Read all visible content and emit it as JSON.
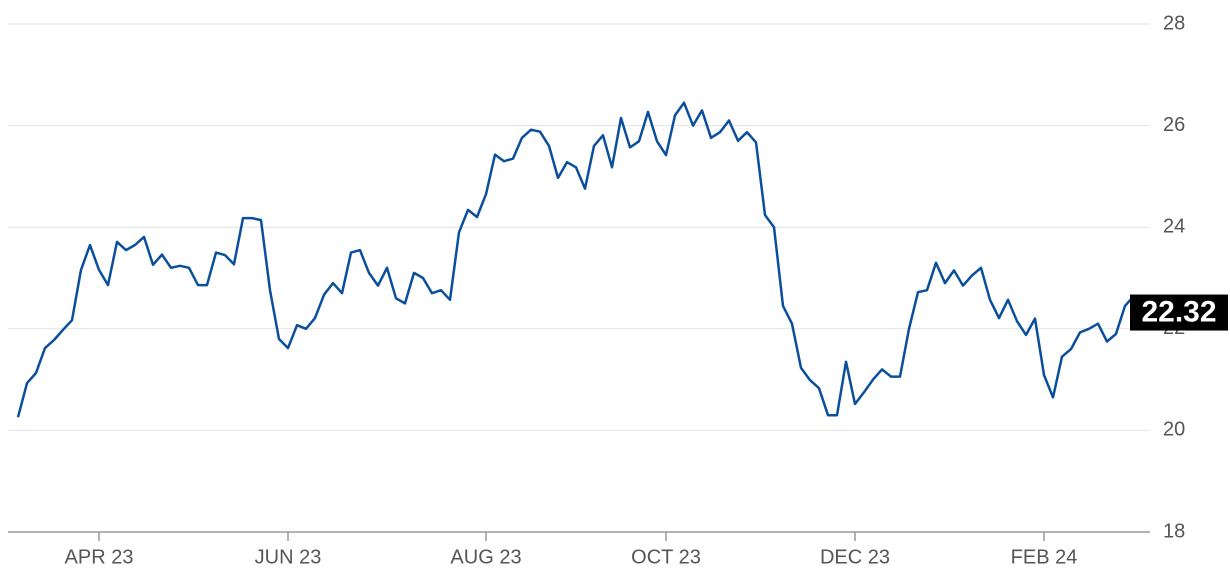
{
  "chart_data": {
    "type": "line",
    "categories": [
      null,
      null,
      null,
      null,
      null,
      null,
      null,
      null,
      null,
      "APR 23",
      null,
      null,
      null,
      null,
      null,
      null,
      null,
      null,
      null,
      null,
      null,
      null,
      null,
      null,
      null,
      null,
      null,
      null,
      null,
      null,
      "JUN 23",
      null,
      null,
      null,
      null,
      null,
      null,
      null,
      null,
      null,
      null,
      null,
      null,
      null,
      null,
      null,
      null,
      null,
      null,
      null,
      null,
      null,
      "AUG 23",
      null,
      null,
      null,
      null,
      null,
      null,
      null,
      null,
      null,
      null,
      null,
      null,
      null,
      null,
      null,
      null,
      null,
      null,
      null,
      "OCT 23",
      null,
      null,
      null,
      null,
      null,
      null,
      null,
      null,
      null,
      null,
      null,
      null,
      null,
      null,
      null,
      null,
      null,
      null,
      null,
      null,
      "DEC 23",
      null,
      null,
      null,
      null,
      null,
      null,
      null,
      null,
      null,
      null,
      null,
      null,
      null,
      null,
      null,
      null,
      null,
      null,
      null,
      null,
      "FEB 24",
      null,
      null,
      null,
      null,
      null,
      null,
      null,
      null,
      null,
      null,
      null
    ],
    "values": [
      20.26,
      20.93,
      21.13,
      21.62,
      21.78,
      21.98,
      22.17,
      23.16,
      23.65,
      23.16,
      22.86,
      23.71,
      23.55,
      23.65,
      23.81,
      23.26,
      23.46,
      23.2,
      23.24,
      23.2,
      22.86,
      22.86,
      23.5,
      23.45,
      23.27,
      24.18,
      24.18,
      24.14,
      22.76,
      21.8,
      21.62,
      22.07,
      22.0,
      22.21,
      22.67,
      22.9,
      22.7,
      23.5,
      23.55,
      23.1,
      22.85,
      23.2,
      22.6,
      22.5,
      23.1,
      23.0,
      22.7,
      22.76,
      22.57,
      23.9,
      24.34,
      24.2,
      24.65,
      25.43,
      25.3,
      25.35,
      25.76,
      25.92,
      25.88,
      25.6,
      24.97,
      25.28,
      25.18,
      24.76,
      25.6,
      25.81,
      25.18,
      26.15,
      25.57,
      25.69,
      26.27,
      25.69,
      25.42,
      26.2,
      26.45,
      26.0,
      26.3,
      25.76,
      25.87,
      26.1,
      25.7,
      25.87,
      25.67,
      24.24,
      24.0,
      22.45,
      22.1,
      21.23,
      20.99,
      20.83,
      20.3,
      20.3,
      21.35,
      20.52,
      20.75,
      21.0,
      21.2,
      21.06,
      21.06,
      22.0,
      22.72,
      22.76,
      23.3,
      22.9,
      23.15,
      22.85,
      23.05,
      23.2,
      22.57,
      22.21,
      22.57,
      22.15,
      21.88,
      22.2,
      21.09,
      20.65,
      21.45,
      21.6,
      21.93,
      22.0,
      22.1,
      21.75,
      21.9,
      22.45,
      22.65,
      22.32
    ],
    "color": "#0b4f9c",
    "ylim": [
      18,
      28
    ],
    "yticks": [
      18,
      20,
      22,
      24,
      26,
      28
    ],
    "grid": true
  }
}
